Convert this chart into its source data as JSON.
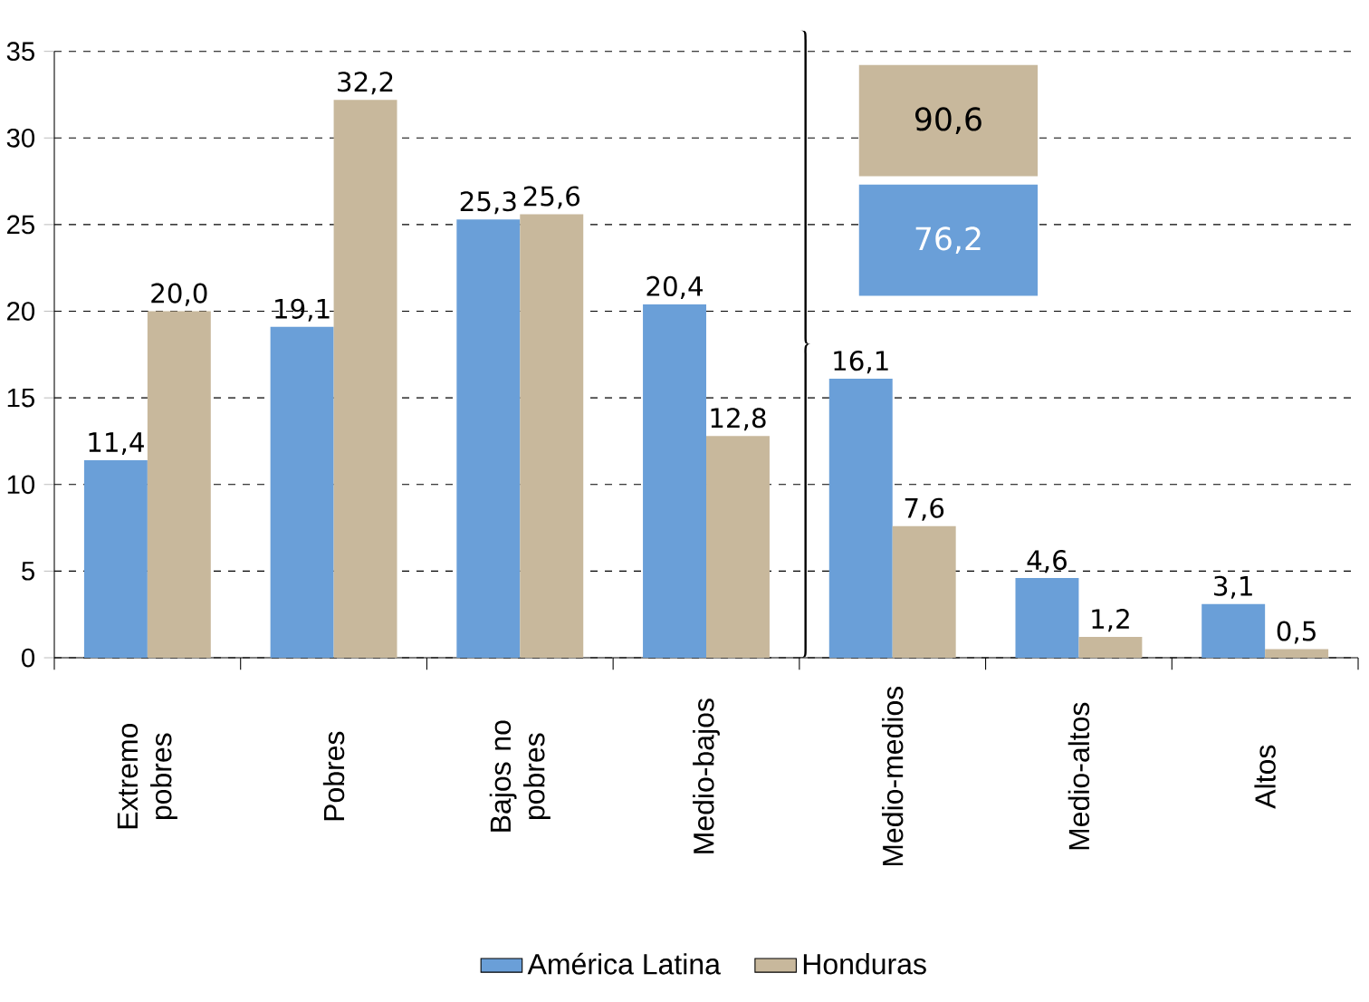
{
  "chart_data": {
    "type": "bar",
    "categories": [
      "Extremo pobres",
      "Pobres",
      "Bajos no pobres",
      "Medio-bajos",
      "Medio-medios",
      "Medio-altos",
      "Altos"
    ],
    "series": [
      {
        "name": "América Latina",
        "color": "#6a9fd8",
        "values": [
          11.4,
          19.1,
          25.3,
          20.4,
          16.1,
          4.6,
          3.1
        ],
        "value_labels": [
          "11,4",
          "19,1",
          "25,3",
          "20,4",
          "16,1",
          "4,6",
          "3,1"
        ]
      },
      {
        "name": "Honduras",
        "color": "#c8b89c",
        "values": [
          20.0,
          32.2,
          25.6,
          12.8,
          7.6,
          1.2,
          0.5
        ],
        "value_labels": [
          "20,0",
          "32,2",
          "25,6",
          "12,8",
          "7,6",
          "1,2",
          "0,5"
        ]
      }
    ],
    "annotations": [
      "90,6",
      "76,2"
    ],
    "ylim": [
      0,
      35
    ],
    "yticks": [
      0,
      5,
      10,
      15,
      20,
      25,
      30,
      35
    ],
    "grid": "y",
    "legend": "bottom"
  }
}
